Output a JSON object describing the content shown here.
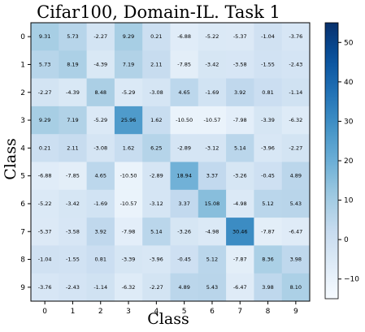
{
  "chart_data": {
    "type": "heatmap",
    "title": "Cifar100, Domain-IL. Task 1",
    "xlabel": "Class",
    "ylabel": "Class",
    "x_categories": [
      "0",
      "1",
      "2",
      "3",
      "4",
      "5",
      "6",
      "7",
      "8",
      "9"
    ],
    "y_categories": [
      "0",
      "1",
      "2",
      "3",
      "4",
      "5",
      "6",
      "7",
      "8",
      "9"
    ],
    "values": [
      [
        9.31,
        5.73,
        -2.27,
        9.29,
        0.21,
        -6.88,
        -5.22,
        -5.37,
        -1.04,
        -3.76
      ],
      [
        5.73,
        8.19,
        -4.39,
        7.19,
        2.11,
        -7.85,
        -3.42,
        -3.58,
        -1.55,
        -2.43
      ],
      [
        -2.27,
        -4.39,
        8.48,
        -5.29,
        -3.08,
        4.65,
        -1.69,
        3.92,
        0.81,
        -1.14
      ],
      [
        9.29,
        7.19,
        -5.29,
        25.96,
        1.62,
        -10.5,
        -10.57,
        -7.98,
        -3.39,
        -6.32
      ],
      [
        0.21,
        2.11,
        -3.08,
        1.62,
        6.25,
        -2.89,
        -3.12,
        5.14,
        -3.96,
        -2.27
      ],
      [
        -6.88,
        -7.85,
        4.65,
        -10.5,
        -2.89,
        18.94,
        3.37,
        -3.26,
        -0.45,
        4.89
      ],
      [
        -5.22,
        -3.42,
        -1.69,
        -10.57,
        -3.12,
        3.37,
        15.08,
        -4.98,
        5.12,
        5.43
      ],
      [
        -5.37,
        -3.58,
        3.92,
        -7.98,
        5.14,
        -3.26,
        -4.98,
        30.46,
        -7.87,
        -6.47
      ],
      [
        -1.04,
        -1.55,
        0.81,
        -3.39,
        -3.96,
        -0.45,
        5.12,
        -7.87,
        8.36,
        3.98
      ],
      [
        -3.76,
        -2.43,
        -1.14,
        -6.32,
        -2.27,
        4.89,
        5.43,
        -6.47,
        3.98,
        8.1
      ]
    ],
    "colorbar": {
      "vmin": -15,
      "vmax": 55,
      "ticks": [
        -10,
        0,
        10,
        20,
        30,
        40,
        50
      ],
      "colormap": "Blues"
    },
    "grid": false
  }
}
